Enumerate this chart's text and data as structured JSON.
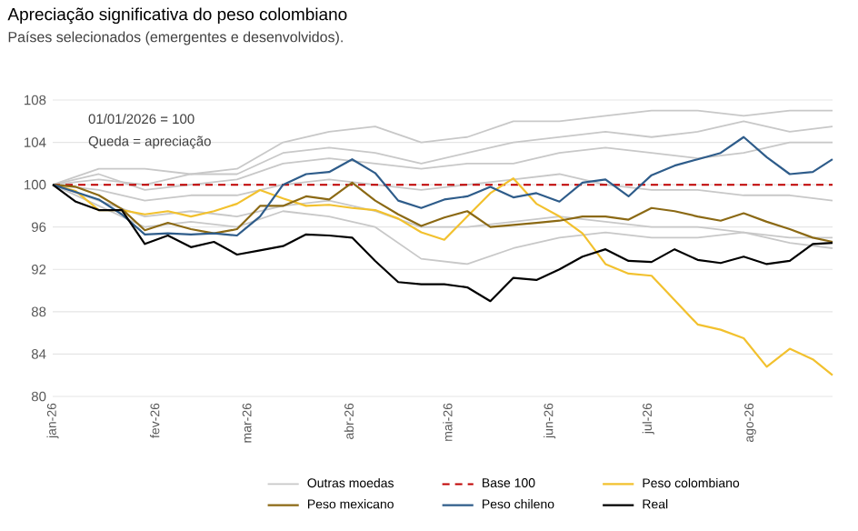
{
  "chart_data": {
    "type": "line",
    "title": "Apreciação significativa do peso colombiano",
    "subtitle": "Países selecionados (emergentes e desenvolvidos).",
    "annotations": [
      "01/01/2026 = 100",
      "Queda = apreciação"
    ],
    "x": [
      "2026-01-01",
      "2026-01-08",
      "2026-01-15",
      "2026-01-22",
      "2026-01-29",
      "2026-02-05",
      "2026-02-12",
      "2026-02-19",
      "2026-02-26",
      "2026-03-05",
      "2026-03-12",
      "2026-03-19",
      "2026-03-26",
      "2026-04-02",
      "2026-04-09",
      "2026-04-16",
      "2026-04-23",
      "2026-04-30",
      "2026-05-07",
      "2026-05-14",
      "2026-05-21",
      "2026-05-28",
      "2026-06-04",
      "2026-06-11",
      "2026-06-18",
      "2026-06-25",
      "2026-07-02",
      "2026-07-09",
      "2026-07-16",
      "2026-07-23",
      "2026-07-30",
      "2026-08-06",
      "2026-08-13",
      "2026-08-20",
      "2026-08-26"
    ],
    "xlim": [
      "2026-01-01",
      "2026-08-26"
    ],
    "xticks": [
      {
        "value": "2026-01-01",
        "label": "jan-26"
      },
      {
        "value": "2026-02-01",
        "label": "fev-26"
      },
      {
        "value": "2026-03-01",
        "label": "mar-26"
      },
      {
        "value": "2026-04-01",
        "label": "abr-26"
      },
      {
        "value": "2026-05-01",
        "label": "mai-26"
      },
      {
        "value": "2026-06-01",
        "label": "jun-26"
      },
      {
        "value": "2026-07-01",
        "label": "jul-26"
      },
      {
        "value": "2026-08-01",
        "label": "ago-26"
      }
    ],
    "ylim": [
      80,
      108
    ],
    "yticks": [
      80,
      84,
      88,
      92,
      96,
      100,
      104,
      108
    ],
    "grid": "y",
    "legend": "bottom",
    "marker": "none",
    "line_style": "solid",
    "ref_lines": [
      {
        "axis": "y",
        "value": 100,
        "label": "Base 100",
        "color": "#c00000",
        "line_style": "dashed"
      }
    ],
    "series": [
      {
        "color": "#c8c8c8",
        "x": [
          "2026-01-01",
          "2026-01-15",
          "2026-01-29",
          "2026-02-12",
          "2026-02-26",
          "2026-03-12",
          "2026-03-26",
          "2026-04-09",
          "2026-04-23",
          "2026-05-07",
          "2026-05-21",
          "2026-06-04",
          "2026-06-18",
          "2026-07-02",
          "2026-07-16",
          "2026-07-30",
          "2026-08-13",
          "2026-08-26"
        ],
        "values": [
          100,
          100.5,
          100,
          101,
          101,
          103,
          103.5,
          103,
          102,
          103,
          104,
          104.5,
          105,
          104.5,
          105,
          106,
          105,
          105.5
        ]
      },
      {
        "color": "#c8c8c8",
        "x": [
          "2026-01-01",
          "2026-01-15",
          "2026-01-29",
          "2026-02-12",
          "2026-02-26",
          "2026-03-12",
          "2026-03-26",
          "2026-04-09",
          "2026-04-23",
          "2026-05-07",
          "2026-05-21",
          "2026-06-04",
          "2026-06-18",
          "2026-07-02",
          "2026-07-16",
          "2026-07-30",
          "2026-08-13",
          "2026-08-26"
        ],
        "values": [
          100,
          101,
          99.5,
          100,
          100.5,
          102,
          102.5,
          102,
          101.5,
          102,
          102,
          103,
          103.5,
          103,
          102.5,
          103,
          104,
          104
        ]
      },
      {
        "color": "#c8c8c8",
        "x": [
          "2026-01-01",
          "2026-01-15",
          "2026-01-29",
          "2026-02-12",
          "2026-02-26",
          "2026-03-12",
          "2026-03-26",
          "2026-04-09",
          "2026-04-23",
          "2026-05-07",
          "2026-05-21",
          "2026-06-04",
          "2026-06-18",
          "2026-07-02",
          "2026-07-16",
          "2026-07-30",
          "2026-08-13",
          "2026-08-26"
        ],
        "values": [
          100,
          99.5,
          98.5,
          99,
          99,
          100,
          100.5,
          100,
          99.5,
          100,
          100.5,
          101,
          100,
          99.5,
          99.5,
          99,
          99,
          98.5
        ]
      },
      {
        "color": "#c8c8c8",
        "x": [
          "2026-01-01",
          "2026-01-15",
          "2026-01-29",
          "2026-02-12",
          "2026-02-26",
          "2026-03-12",
          "2026-03-26",
          "2026-04-09",
          "2026-04-23",
          "2026-05-07",
          "2026-05-21",
          "2026-06-04",
          "2026-06-18",
          "2026-07-02",
          "2026-07-16",
          "2026-07-30",
          "2026-08-13",
          "2026-08-26"
        ],
        "values": [
          100,
          98.5,
          97,
          97.5,
          97,
          98,
          98.5,
          97.5,
          96,
          96,
          96.5,
          97,
          96.5,
          96,
          96,
          95.5,
          95,
          95
        ]
      },
      {
        "color": "#c8c8c8",
        "x": [
          "2026-01-01",
          "2026-01-15",
          "2026-01-29",
          "2026-02-12",
          "2026-02-26",
          "2026-03-12",
          "2026-03-26",
          "2026-04-09",
          "2026-04-23",
          "2026-05-07",
          "2026-05-21",
          "2026-06-04",
          "2026-06-18",
          "2026-07-02",
          "2026-07-16",
          "2026-07-30",
          "2026-08-13",
          "2026-08-26"
        ],
        "values": [
          100,
          98,
          96,
          96.5,
          96,
          97.5,
          97,
          96,
          93,
          92.5,
          94,
          95,
          95.5,
          95,
          95,
          95.5,
          94.5,
          94
        ]
      },
      {
        "name": "Outras moedas",
        "color": "#c8c8c8",
        "x": [
          "2026-01-01",
          "2026-01-15",
          "2026-01-29",
          "2026-02-12",
          "2026-02-26",
          "2026-03-12",
          "2026-03-26",
          "2026-04-09",
          "2026-04-23",
          "2026-05-07",
          "2026-05-21",
          "2026-06-04",
          "2026-06-18",
          "2026-07-02",
          "2026-07-16",
          "2026-07-30",
          "2026-08-13",
          "2026-08-26"
        ],
        "values": [
          100,
          101.5,
          101.5,
          101,
          101.5,
          104,
          105,
          105.5,
          104,
          104.5,
          106,
          106,
          106.5,
          107,
          107,
          106.5,
          107,
          107
        ]
      },
      {
        "name": "Peso colombiano",
        "color": "#f2c12e",
        "values": [
          100,
          99.4,
          97.6,
          97.6,
          97.2,
          97.5,
          97.0,
          97.5,
          98.2,
          99.5,
          98.7,
          98.0,
          98.1,
          97.8,
          97.6,
          96.8,
          95.5,
          94.8,
          97.0,
          99.2,
          100.6,
          98.2,
          97.0,
          95.4,
          92.5,
          91.6,
          91.4,
          89.1,
          86.8,
          86.3,
          85.5,
          82.8,
          84.5,
          83.5,
          82.0
        ]
      },
      {
        "name": "Peso mexicano",
        "color": "#8b6914",
        "values": [
          100,
          99.8,
          99.0,
          97.7,
          95.7,
          96.4,
          95.8,
          95.4,
          95.8,
          98.0,
          98.0,
          98.9,
          98.6,
          100.2,
          98.5,
          97.2,
          96.1,
          96.9,
          97.5,
          96.0,
          96.2,
          96.4,
          96.6,
          97.0,
          97.0,
          96.7,
          97.8,
          97.5,
          97.0,
          96.6,
          97.3,
          96.5,
          95.8,
          95.0,
          94.6
        ]
      },
      {
        "name": "Peso chileno",
        "color": "#2e5c8a",
        "values": [
          100,
          99.3,
          98.6,
          97.2,
          95.3,
          95.4,
          95.3,
          95.4,
          95.2,
          97.0,
          100.0,
          101.0,
          101.2,
          102.4,
          101.1,
          98.5,
          97.8,
          98.6,
          98.9,
          99.8,
          98.8,
          99.2,
          98.4,
          100.2,
          100.5,
          98.9,
          100.9,
          101.8,
          102.4,
          103.0,
          104.5,
          102.6,
          101.0,
          101.2,
          102.4
        ]
      },
      {
        "name": "Real",
        "color": "#000000",
        "values": [
          100,
          98.4,
          97.6,
          97.6,
          94.4,
          95.2,
          94.1,
          94.6,
          93.4,
          93.8,
          94.2,
          95.3,
          95.2,
          95.0,
          92.8,
          90.8,
          90.6,
          90.6,
          90.3,
          89.0,
          91.2,
          91.0,
          92.0,
          93.2,
          93.9,
          92.8,
          92.7,
          93.9,
          92.9,
          92.6,
          93.2,
          92.5,
          92.8,
          94.4,
          94.5
        ]
      }
    ]
  }
}
